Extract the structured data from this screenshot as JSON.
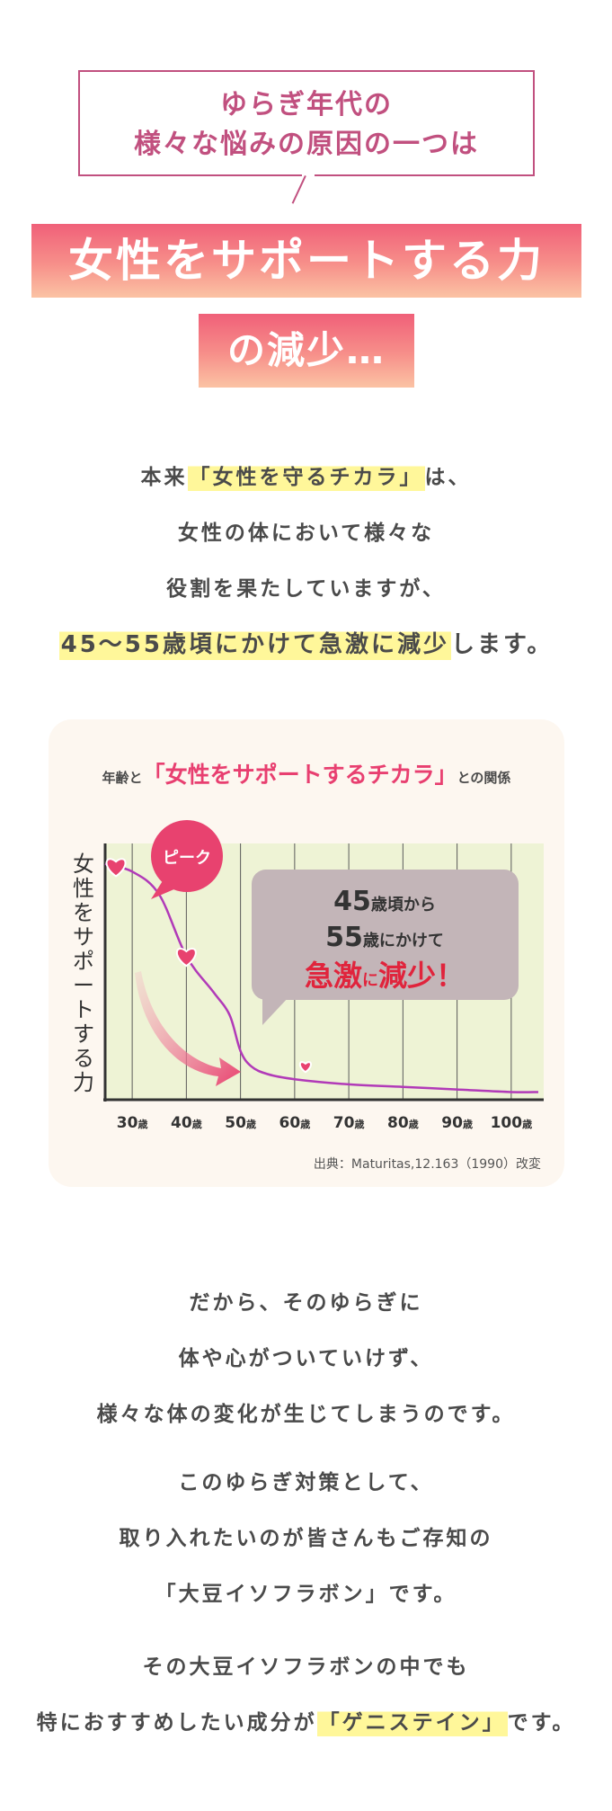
{
  "heading": {
    "question_lines": [
      "ゆらぎ年代の",
      "様々な悩みの原因の一つは"
    ],
    "banner_main": "女性をサポートする力",
    "banner_sub": "の減少…"
  },
  "intro": {
    "line1_pre": "本来",
    "line1_highlight": "「女性を守るチカラ」",
    "line1_post": "は、",
    "line2": "女性の体において様々な",
    "line3": "役割を果たしていますが、",
    "line4_highlight": "45〜55歳頃にかけて急激に減少",
    "line4_post": "します。"
  },
  "chart_data": {
    "type": "line",
    "title_pre": "年齢と",
    "title_highlight": "「女性をサポートするチカラ」",
    "title_post": "との関係",
    "ylabel": "女性をサポートする力",
    "categories": [
      "30歳",
      "40歳",
      "50歳",
      "60歳",
      "70歳",
      "80歳",
      "90歳",
      "100歳"
    ],
    "x": [
      25,
      30,
      35,
      40,
      45,
      48,
      50,
      52,
      55,
      60,
      70,
      80,
      90,
      100,
      105
    ],
    "values": [
      92,
      89,
      80,
      56,
      42,
      33,
      19,
      13,
      10,
      8,
      6,
      5,
      4,
      3,
      3
    ],
    "xlim": [
      25,
      106
    ],
    "ylim": [
      0,
      100
    ],
    "grid": "vertical",
    "peak_label": "ピーク",
    "markers": [
      {
        "x": 27,
        "y": 91
      },
      {
        "x": 40,
        "y": 56
      },
      {
        "x": 62,
        "y": 13
      }
    ],
    "callout": {
      "line1_num": "45",
      "line1_text": "歳頃から",
      "line2_num": "55",
      "line2_text": "歳にかけて",
      "line3_a": "急激",
      "line3_b": "に",
      "line3_c": "減少",
      "line3_d": "！"
    },
    "source": "出典：Maturitas,12.163（1990）改変",
    "colors": {
      "line": "#b13ab8",
      "accent": "#e8426f",
      "plot_bg": "#eef3d5",
      "callout_bg": "#c3b5b8"
    }
  },
  "closing": {
    "p2": [
      "だから、そのゆらぎに",
      "体や心がついていけず、",
      "様々な体の変化が生じてしまうのです。"
    ],
    "p3": [
      "このゆらぎ対策として、",
      "取り入れたいのが皆さんもご存知の",
      "「大豆イソフラボン」です。"
    ],
    "p4_line1": "その大豆イソフラボンの中でも",
    "p4_line2_pre": "特におすすめしたい成分が",
    "p4_line2_highlight": "「ゲニステイン」",
    "p4_line2_post": "です。"
  }
}
